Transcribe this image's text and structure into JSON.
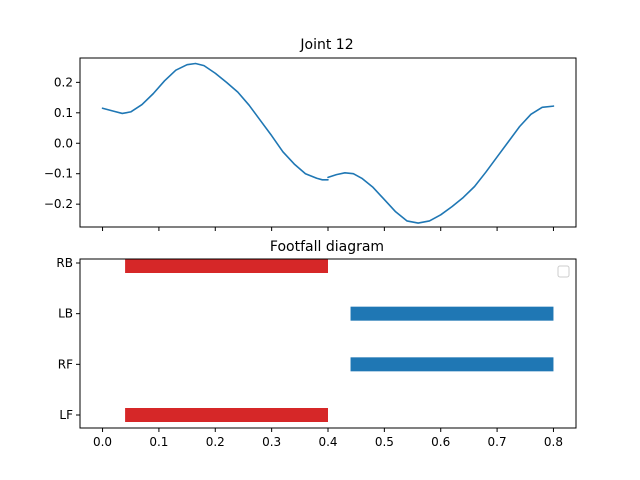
{
  "chart_data": [
    {
      "type": "line",
      "title": "Joint 12",
      "xlabel": "",
      "ylabel": "",
      "xlim": [
        -0.04,
        0.84
      ],
      "ylim": [
        -0.275,
        0.28
      ],
      "xticks": [
        0.0,
        0.1,
        0.2,
        0.3,
        0.4,
        0.5,
        0.6,
        0.7,
        0.8
      ],
      "yticks": [
        0.2,
        0.1,
        0.0,
        -0.1,
        -0.2
      ],
      "ytick_labels": [
        "0.2",
        "0.1",
        "0.0",
        "−0.1",
        "−0.2"
      ],
      "show_xtick_labels": false,
      "grid": false,
      "color": "#1f77b4",
      "series": [
        {
          "x": [
            0.0,
            0.02,
            0.035,
            0.05,
            0.07,
            0.09,
            0.11,
            0.13,
            0.15,
            0.165,
            0.18,
            0.2,
            0.22,
            0.24,
            0.26,
            0.28,
            0.3,
            0.32,
            0.34,
            0.36,
            0.38,
            0.39,
            0.4
          ],
          "y": [
            0.115,
            0.105,
            0.098,
            0.103,
            0.127,
            0.163,
            0.205,
            0.24,
            0.258,
            0.262,
            0.255,
            0.23,
            0.2,
            0.168,
            0.125,
            0.075,
            0.025,
            -0.028,
            -0.068,
            -0.1,
            -0.115,
            -0.12,
            -0.12
          ]
        },
        {
          "x": [
            0.4,
            0.415,
            0.43,
            0.445,
            0.46,
            0.48,
            0.5,
            0.52,
            0.54,
            0.56,
            0.58,
            0.6,
            0.62,
            0.64,
            0.66,
            0.68,
            0.7,
            0.72,
            0.74,
            0.76,
            0.78,
            0.8
          ],
          "y": [
            -0.112,
            -0.103,
            -0.097,
            -0.1,
            -0.115,
            -0.145,
            -0.185,
            -0.225,
            -0.255,
            -0.262,
            -0.255,
            -0.235,
            -0.208,
            -0.178,
            -0.142,
            -0.095,
            -0.045,
            0.005,
            0.055,
            0.095,
            0.118,
            0.122
          ]
        }
      ]
    },
    {
      "type": "bar",
      "title": "Footfall diagram",
      "xlabel": "",
      "ylabel": "",
      "xlim": [
        -0.04,
        0.84
      ],
      "xticks": [
        0.0,
        0.1,
        0.2,
        0.3,
        0.4,
        0.5,
        0.6,
        0.7,
        0.8
      ],
      "xtick_labels": [
        "0.0",
        "0.1",
        "0.2",
        "0.3",
        "0.4",
        "0.5",
        "0.6",
        "0.7",
        "0.8"
      ],
      "categories": [
        "RB",
        "LB",
        "RF",
        "LF"
      ],
      "legend": "top-right, empty",
      "grid": false,
      "bars": [
        {
          "category": "RB",
          "start": 0.04,
          "end": 0.4,
          "color": "#d62728"
        },
        {
          "category": "LB",
          "start": 0.44,
          "end": 0.8,
          "color": "#1f77b4"
        },
        {
          "category": "RF",
          "start": 0.44,
          "end": 0.8,
          "color": "#1f77b4"
        },
        {
          "category": "LF",
          "start": 0.04,
          "end": 0.4,
          "color": "#d62728"
        }
      ]
    }
  ]
}
